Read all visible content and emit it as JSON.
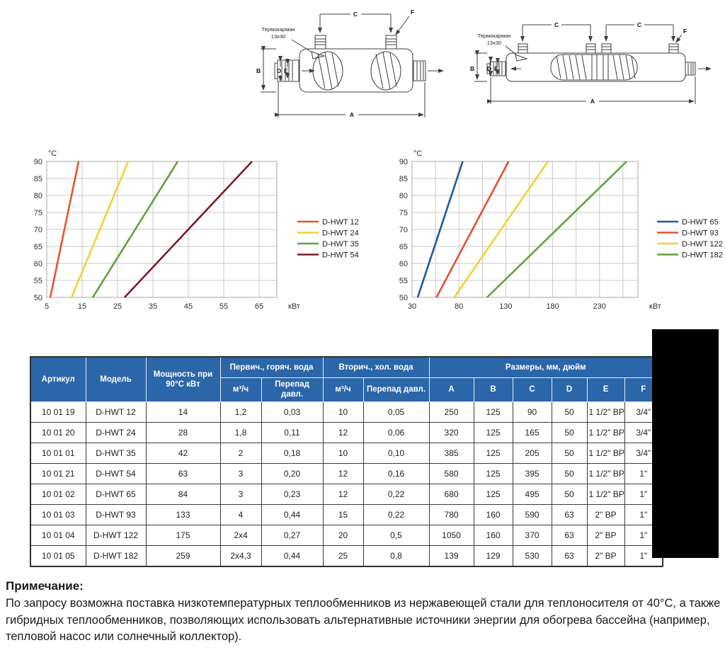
{
  "diagrams": {
    "labels": {
      "thermo_line1": "Термокарман",
      "thermo_line2": "13x30",
      "dim_a": "A",
      "dim_b": "B",
      "dim_c": "C",
      "dim_d": "D",
      "dim_e": "E",
      "dim_f": "F"
    }
  },
  "chart_data": [
    {
      "type": "line",
      "title": "",
      "ylabel": "°C",
      "xlabel": "кВт",
      "ylim": [
        50,
        90
      ],
      "xlim": [
        5,
        70
      ],
      "x_ticks": [
        5,
        15,
        25,
        35,
        45,
        55,
        65
      ],
      "y_ticks": [
        50,
        55,
        60,
        65,
        70,
        75,
        80,
        85,
        90
      ],
      "x_grid_step": 10,
      "y_grid_step": 5,
      "grid": true,
      "legend_position": "right",
      "series": [
        {
          "name": "D-HWT 12",
          "color": "#e8542b",
          "points": [
            [
              6,
              50
            ],
            [
              14,
              90
            ]
          ]
        },
        {
          "name": "D-HWT 24",
          "color": "#f6cf35",
          "points": [
            [
              12,
              50
            ],
            [
              28,
              90
            ]
          ]
        },
        {
          "name": "D-HWT 35",
          "color": "#61a23d",
          "points": [
            [
              18,
              50
            ],
            [
              42,
              90
            ]
          ]
        },
        {
          "name": "D-HWT 54",
          "color": "#7d1b2d",
          "points": [
            [
              27,
              50
            ],
            [
              63,
              90
            ]
          ]
        }
      ]
    },
    {
      "type": "line",
      "title": "",
      "ylabel": "°C",
      "xlabel": "кВт",
      "ylim": [
        50,
        90
      ],
      "xlim": [
        30,
        271
      ],
      "x_ticks": [
        30,
        80,
        130,
        180,
        230
      ],
      "y_ticks": [
        50,
        55,
        60,
        65,
        70,
        75,
        80,
        85,
        90
      ],
      "x_grid_step": 25,
      "y_grid_step": 5,
      "grid": true,
      "legend_position": "right",
      "series": [
        {
          "name": "D-HWT 65",
          "color": "#2158a5",
          "points": [
            [
              36,
              50
            ],
            [
              84,
              90
            ]
          ]
        },
        {
          "name": "D-HWT 93",
          "color": "#e8502a",
          "points": [
            [
              56,
              50
            ],
            [
              133,
              90
            ]
          ]
        },
        {
          "name": "D-HWT 122",
          "color": "#f6cf35",
          "points": [
            [
              75,
              50
            ],
            [
              175,
              90
            ]
          ]
        },
        {
          "name": "D-HWT 182",
          "color": "#61a23d",
          "points": [
            [
              110,
              50
            ],
            [
              259,
              90
            ]
          ]
        }
      ]
    }
  ],
  "table": {
    "header": {
      "artikul": "Артикул",
      "model": "Модель",
      "power": "Мощность при 90°С кВт",
      "primary_group": "Первич., горяч. вода",
      "secondary_group": "Вторич., хол. вода",
      "dims_group": "Размеры, мм, дюйм",
      "flow": "м³/ч",
      "pressure_drop": "Перепад давл.",
      "dim_cols": [
        "A",
        "B",
        "C",
        "D",
        "E",
        "F"
      ]
    },
    "rows": [
      [
        "10 01 19",
        "D-HWT 12",
        "14",
        "1,2",
        "0,03",
        "10",
        "0,05",
        "250",
        "125",
        "90",
        "50",
        "1 1/2\" ВР",
        "3/4\""
      ],
      [
        "10 01 20",
        "D-HWT 24",
        "28",
        "1,8",
        "0,11",
        "12",
        "0,06",
        "320",
        "125",
        "165",
        "50",
        "1 1/2\" ВР",
        "3/4\""
      ],
      [
        "10 01 01",
        "D-HWT 35",
        "42",
        "2",
        "0,18",
        "10",
        "0,10",
        "385",
        "125",
        "205",
        "50",
        "1 1/2\" ВР",
        "3/4\""
      ],
      [
        "10 01 21",
        "D-HWT 54",
        "63",
        "3",
        "0,20",
        "12",
        "0,16",
        "580",
        "125",
        "395",
        "50",
        "1 1/2\" ВР",
        "1\""
      ],
      [
        "10 01 02",
        "D-HWT 65",
        "84",
        "3",
        "0,23",
        "12",
        "0,22",
        "680",
        "125",
        "495",
        "50",
        "1 1/2\" ВР",
        "1\""
      ],
      [
        "10 01 03",
        "D-HWT 93",
        "133",
        "4",
        "0,44",
        "15",
        "0,22",
        "780",
        "160",
        "590",
        "63",
        "2\" ВР",
        "1\""
      ],
      [
        "10 01 04",
        "D-HWT 122",
        "175",
        "2x4",
        "0,27",
        "20",
        "0,5",
        "1050",
        "160",
        "370",
        "63",
        "2\" ВР",
        "1\""
      ],
      [
        "10 01 05",
        "D-HWT 182",
        "259",
        "2x4,3",
        "0,44",
        "25",
        "0,8",
        "139",
        "129",
        "530",
        "63",
        "2\" ВР",
        "1\""
      ]
    ],
    "header_bg": "#2b66a8"
  },
  "note": {
    "title": "Примечание",
    "colon": ":",
    "body": "По запросу возможна поставка низкотемпературных теплообменников из нержавеющей стали для теплоносителя от 40°С, а также гибридных теплообменников, позволяющих использовать альтернативные источники энергии для обогрева бассейна (например, тепловой насос или солнечный коллектор)."
  }
}
